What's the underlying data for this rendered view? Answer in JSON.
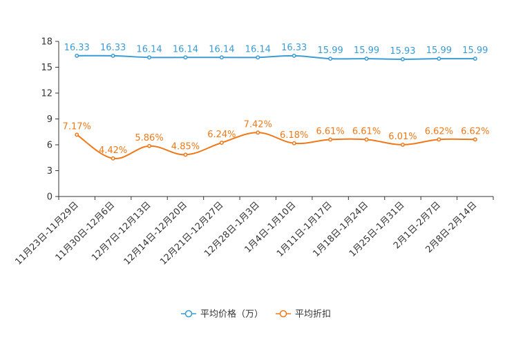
{
  "chart_data": {
    "type": "line",
    "title": "",
    "xlabel": "",
    "ylabel": "",
    "ylim": [
      0,
      18
    ],
    "yticks": [
      0,
      3,
      6,
      9,
      12,
      15,
      18
    ],
    "grid": false,
    "legend_position": "bottom",
    "categories": [
      "11月23日-11月29日",
      "11月30日-12月6日",
      "12月7日-12月13日",
      "12月14日-12月20日",
      "12月21日-12月27日",
      "12月28日-1月3日",
      "1月4日-1月10日",
      "1月11日-1月17日",
      "1月18日-1月24日",
      "1月25日-1月31日",
      "2月1日-2月7日",
      "2月8日-2月14日"
    ],
    "series": [
      {
        "name": "平均价格（万）",
        "color": "#3a9bd5",
        "values": [
          16.33,
          16.33,
          16.14,
          16.14,
          16.14,
          16.14,
          16.33,
          15.99,
          15.99,
          15.93,
          15.99,
          15.99
        ],
        "labels": [
          "16.33",
          "16.33",
          "16.14",
          "16.14",
          "16.14",
          "16.14",
          "16.33",
          "15.99",
          "15.99",
          "15.93",
          "15.99",
          "15.99"
        ]
      },
      {
        "name": "平均折扣",
        "color": "#f07818",
        "values": [
          7.17,
          4.42,
          5.86,
          4.85,
          6.24,
          7.42,
          6.18,
          6.61,
          6.61,
          6.01,
          6.62,
          6.62
        ],
        "labels": [
          "7.17%",
          "4.42%",
          "5.86%",
          "4.85%",
          "6.24%",
          "7.42%",
          "6.18%",
          "6.61%",
          "6.61%",
          "6.01%",
          "6.62%",
          "6.62%"
        ]
      }
    ]
  }
}
